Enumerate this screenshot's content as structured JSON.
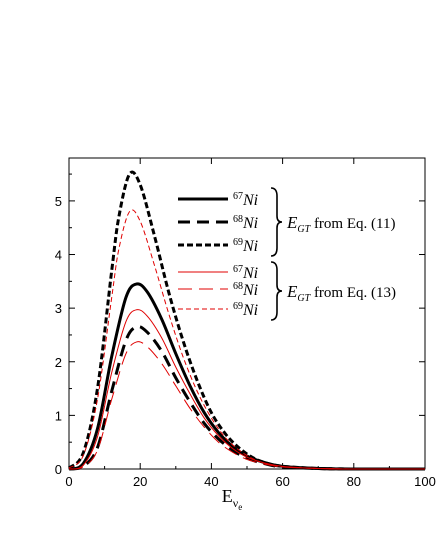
{
  "chart_data": {
    "type": "line",
    "xlabel_main": "E",
    "xlabel_sub": "ν",
    "xlabel_subsub": "e",
    "xlim": [
      0,
      100
    ],
    "ylim": [
      0,
      5.8
    ],
    "xticks": [
      "0",
      "20",
      "40",
      "60",
      "80",
      "100"
    ],
    "yticks": [
      "0",
      "1",
      "2",
      "3",
      "4",
      "5"
    ],
    "groups": [
      {
        "label_prefix": "E",
        "label_sub": "GT",
        "label_suffix": " from Eq. (11)"
      },
      {
        "label_prefix": "E",
        "label_sub": "GT",
        "label_suffix": " from Eq. (13)"
      }
    ],
    "series": [
      {
        "name_sup": "67",
        "name": "Ni",
        "group": 0,
        "color": "#000000",
        "style": "solid",
        "x": [
          0,
          4,
          8,
          12,
          16,
          19,
          22,
          26,
          30,
          34,
          38,
          42,
          46,
          50,
          55,
          60,
          70,
          80,
          90,
          100
        ],
        "y": [
          0,
          0.1,
          0.75,
          2.1,
          3.2,
          3.45,
          3.3,
          2.8,
          2.15,
          1.55,
          1.05,
          0.68,
          0.42,
          0.24,
          0.12,
          0.05,
          0.01,
          0,
          0,
          0
        ]
      },
      {
        "name_sup": "68",
        "name": "Ni",
        "group": 0,
        "color": "#000000",
        "style": "longdash",
        "x": [
          0,
          4,
          8,
          12,
          16,
          19,
          22,
          26,
          30,
          34,
          38,
          42,
          46,
          50,
          55,
          60,
          70,
          80,
          90,
          100
        ],
        "y": [
          0,
          0.05,
          0.4,
          1.45,
          2.4,
          2.65,
          2.55,
          2.2,
          1.7,
          1.25,
          0.85,
          0.56,
          0.35,
          0.2,
          0.1,
          0.04,
          0.01,
          0,
          0,
          0
        ]
      },
      {
        "name_sup": "69",
        "name": "Ni",
        "group": 0,
        "color": "#000000",
        "style": "shortdash",
        "x": [
          0,
          4,
          8,
          12,
          14,
          17,
          20,
          24,
          28,
          32,
          36,
          40,
          44,
          48,
          52,
          56,
          60,
          70,
          80,
          90,
          100
        ],
        "y": [
          0.02,
          0.3,
          1.5,
          3.7,
          4.7,
          5.5,
          5.3,
          4.35,
          3.3,
          2.4,
          1.65,
          1.05,
          0.65,
          0.38,
          0.2,
          0.1,
          0.05,
          0.01,
          0,
          0,
          0
        ]
      },
      {
        "name_sup": "67",
        "name": "Ni",
        "group": 1,
        "color": "#e00000",
        "style": "solid",
        "x": [
          0,
          4,
          8,
          12,
          16,
          19,
          22,
          26,
          30,
          34,
          38,
          42,
          46,
          50,
          55,
          60,
          70,
          80,
          90,
          100
        ],
        "y": [
          0,
          0.07,
          0.6,
          1.8,
          2.75,
          2.97,
          2.85,
          2.45,
          1.9,
          1.4,
          0.95,
          0.62,
          0.38,
          0.22,
          0.11,
          0.05,
          0.01,
          0,
          0,
          0
        ]
      },
      {
        "name_sup": "68",
        "name": "Ni",
        "group": 1,
        "color": "#e00000",
        "style": "longdash",
        "x": [
          0,
          4,
          8,
          12,
          16,
          19,
          22,
          26,
          30,
          34,
          38,
          42,
          46,
          50,
          55,
          60,
          70,
          80,
          90,
          100
        ],
        "y": [
          0,
          0.04,
          0.35,
          1.3,
          2.15,
          2.37,
          2.28,
          1.97,
          1.55,
          1.13,
          0.78,
          0.5,
          0.31,
          0.18,
          0.09,
          0.04,
          0.01,
          0,
          0,
          0
        ]
      },
      {
        "name_sup": "69",
        "name": "Ni",
        "group": 1,
        "color": "#e00000",
        "style": "shortdash",
        "x": [
          0,
          4,
          8,
          12,
          14,
          17,
          20,
          24,
          28,
          32,
          36,
          40,
          44,
          48,
          52,
          56,
          60,
          70,
          80,
          90,
          100
        ],
        "y": [
          0.02,
          0.25,
          1.3,
          3.2,
          4.1,
          4.8,
          4.62,
          3.8,
          2.9,
          2.1,
          1.45,
          0.95,
          0.58,
          0.34,
          0.18,
          0.09,
          0.04,
          0.01,
          0,
          0,
          0
        ]
      }
    ]
  }
}
